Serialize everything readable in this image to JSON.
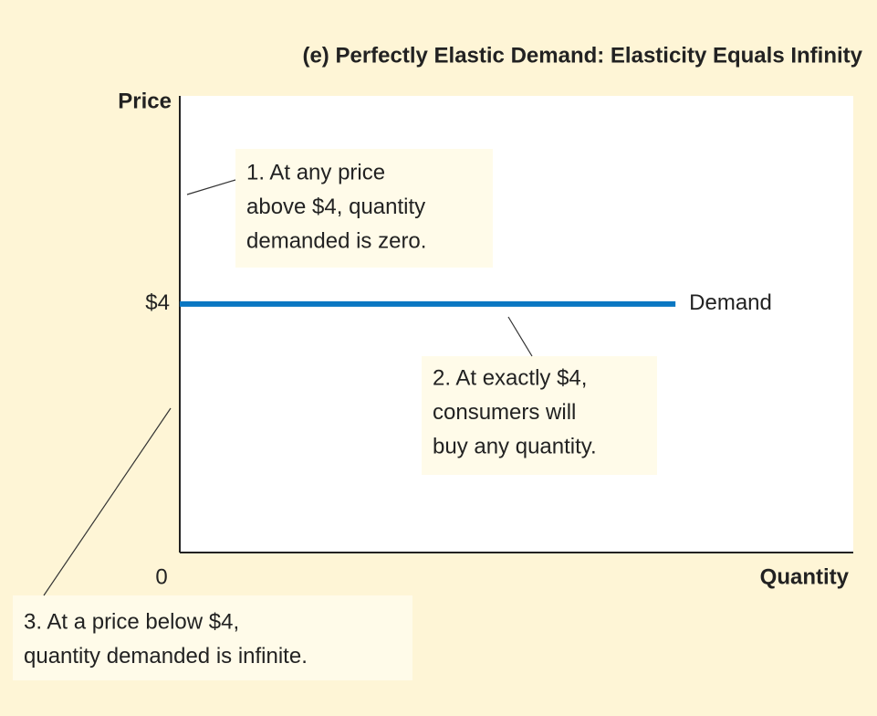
{
  "chart_data": {
    "type": "line",
    "title": "(e) Perfectly Elastic Demand: Elasticity Equals Infinity",
    "y_label": "Price",
    "x_label": "Quantity",
    "xlim": [
      0,
      10
    ],
    "xticks": [
      0
    ],
    "ylim": [
      0,
      7.35
    ],
    "yticks": [
      {
        "value": 4,
        "label": "$4"
      }
    ],
    "series": [
      {
        "name": "Demand",
        "color": "#0a77c2",
        "x": [
          0,
          7.36
        ],
        "values": [
          4,
          4
        ]
      }
    ],
    "annotations": [
      [
        "1. At any price",
        "above $4, quantity",
        "demanded is zero."
      ],
      [
        "2. At exactly $4,",
        "consumers will",
        "buy any quantity."
      ],
      [
        "3. At a price below $4,",
        "quantity demanded is infinite."
      ]
    ]
  }
}
